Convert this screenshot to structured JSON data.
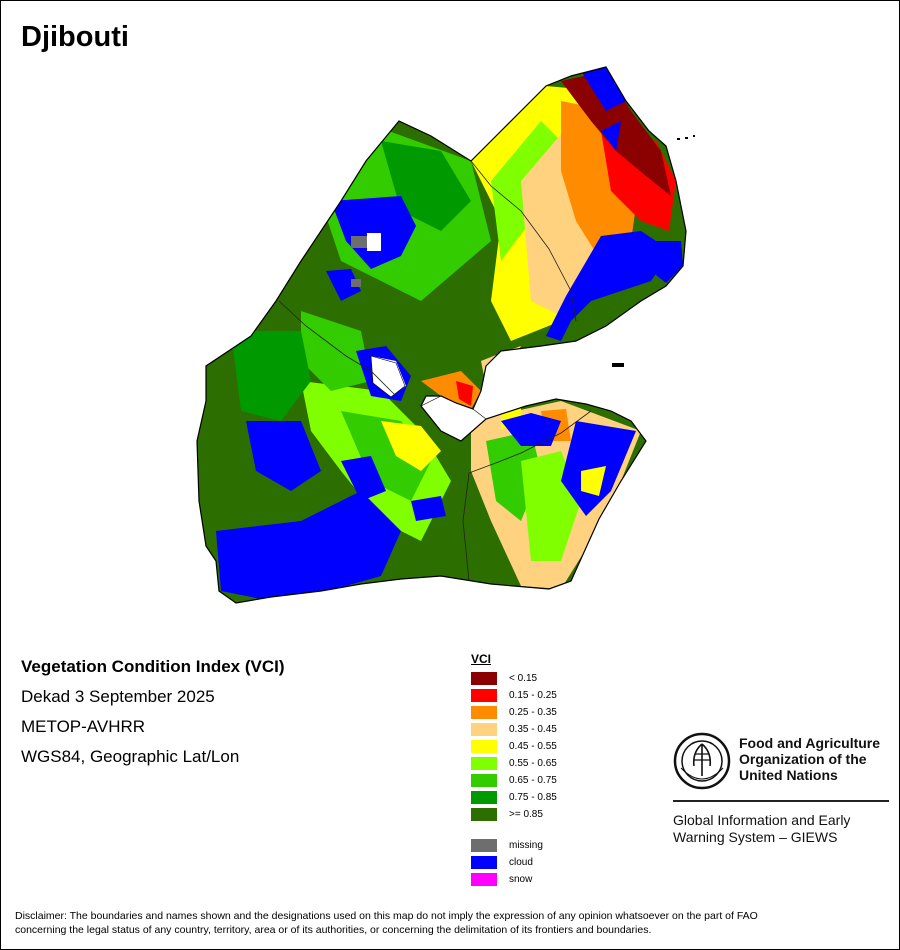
{
  "title": "Djibouti",
  "info": {
    "index_name": "Vegetation Condition Index (VCI)",
    "period": "Dekad 3 September 2025",
    "sensor": "METOP-AVHRR",
    "projection": "WGS84, Geographic Lat/Lon"
  },
  "legend": {
    "heading": "VCI",
    "classes": [
      {
        "label": "< 0.15",
        "color": "#8b0000"
      },
      {
        "label": "0.15 - 0.25",
        "color": "#ff0000"
      },
      {
        "label": "0.25 - 0.35",
        "color": "#ff8c00"
      },
      {
        "label": "0.35 - 0.45",
        "color": "#ffd27f"
      },
      {
        "label": "0.45 - 0.55",
        "color": "#ffff00"
      },
      {
        "label": "0.55 - 0.65",
        "color": "#80ff00"
      },
      {
        "label": "0.65 - 0.75",
        "color": "#33cc00"
      },
      {
        "label": "0.75 - 0.85",
        "color": "#009900"
      },
      {
        "label": ">= 0.85",
        "color": "#2d6e00"
      }
    ],
    "extra": [
      {
        "label": "missing",
        "color": "#6e6e6e"
      },
      {
        "label": "cloud",
        "color": "#0000ff"
      },
      {
        "label": "snow",
        "color": "#ff00ff"
      }
    ]
  },
  "fao": {
    "name_line1": "Food and Agriculture",
    "name_line2": "Organization of the",
    "name_line3": "United Nations",
    "logo_text": "FIAT PANIS",
    "giews_line1": "Global Information and Early",
    "giews_line2": "Warning System – GIEWS"
  },
  "disclaimer_line1": "Disclaimer: The boundaries and names shown and the designations used on this map do not imply the expression of any opinion whatsoever on the part of FAO",
  "disclaimer_line2": "concerning the legal status of any country, territory, area or of its authorities, or concerning the delimitation of its frontiers and boundaries."
}
